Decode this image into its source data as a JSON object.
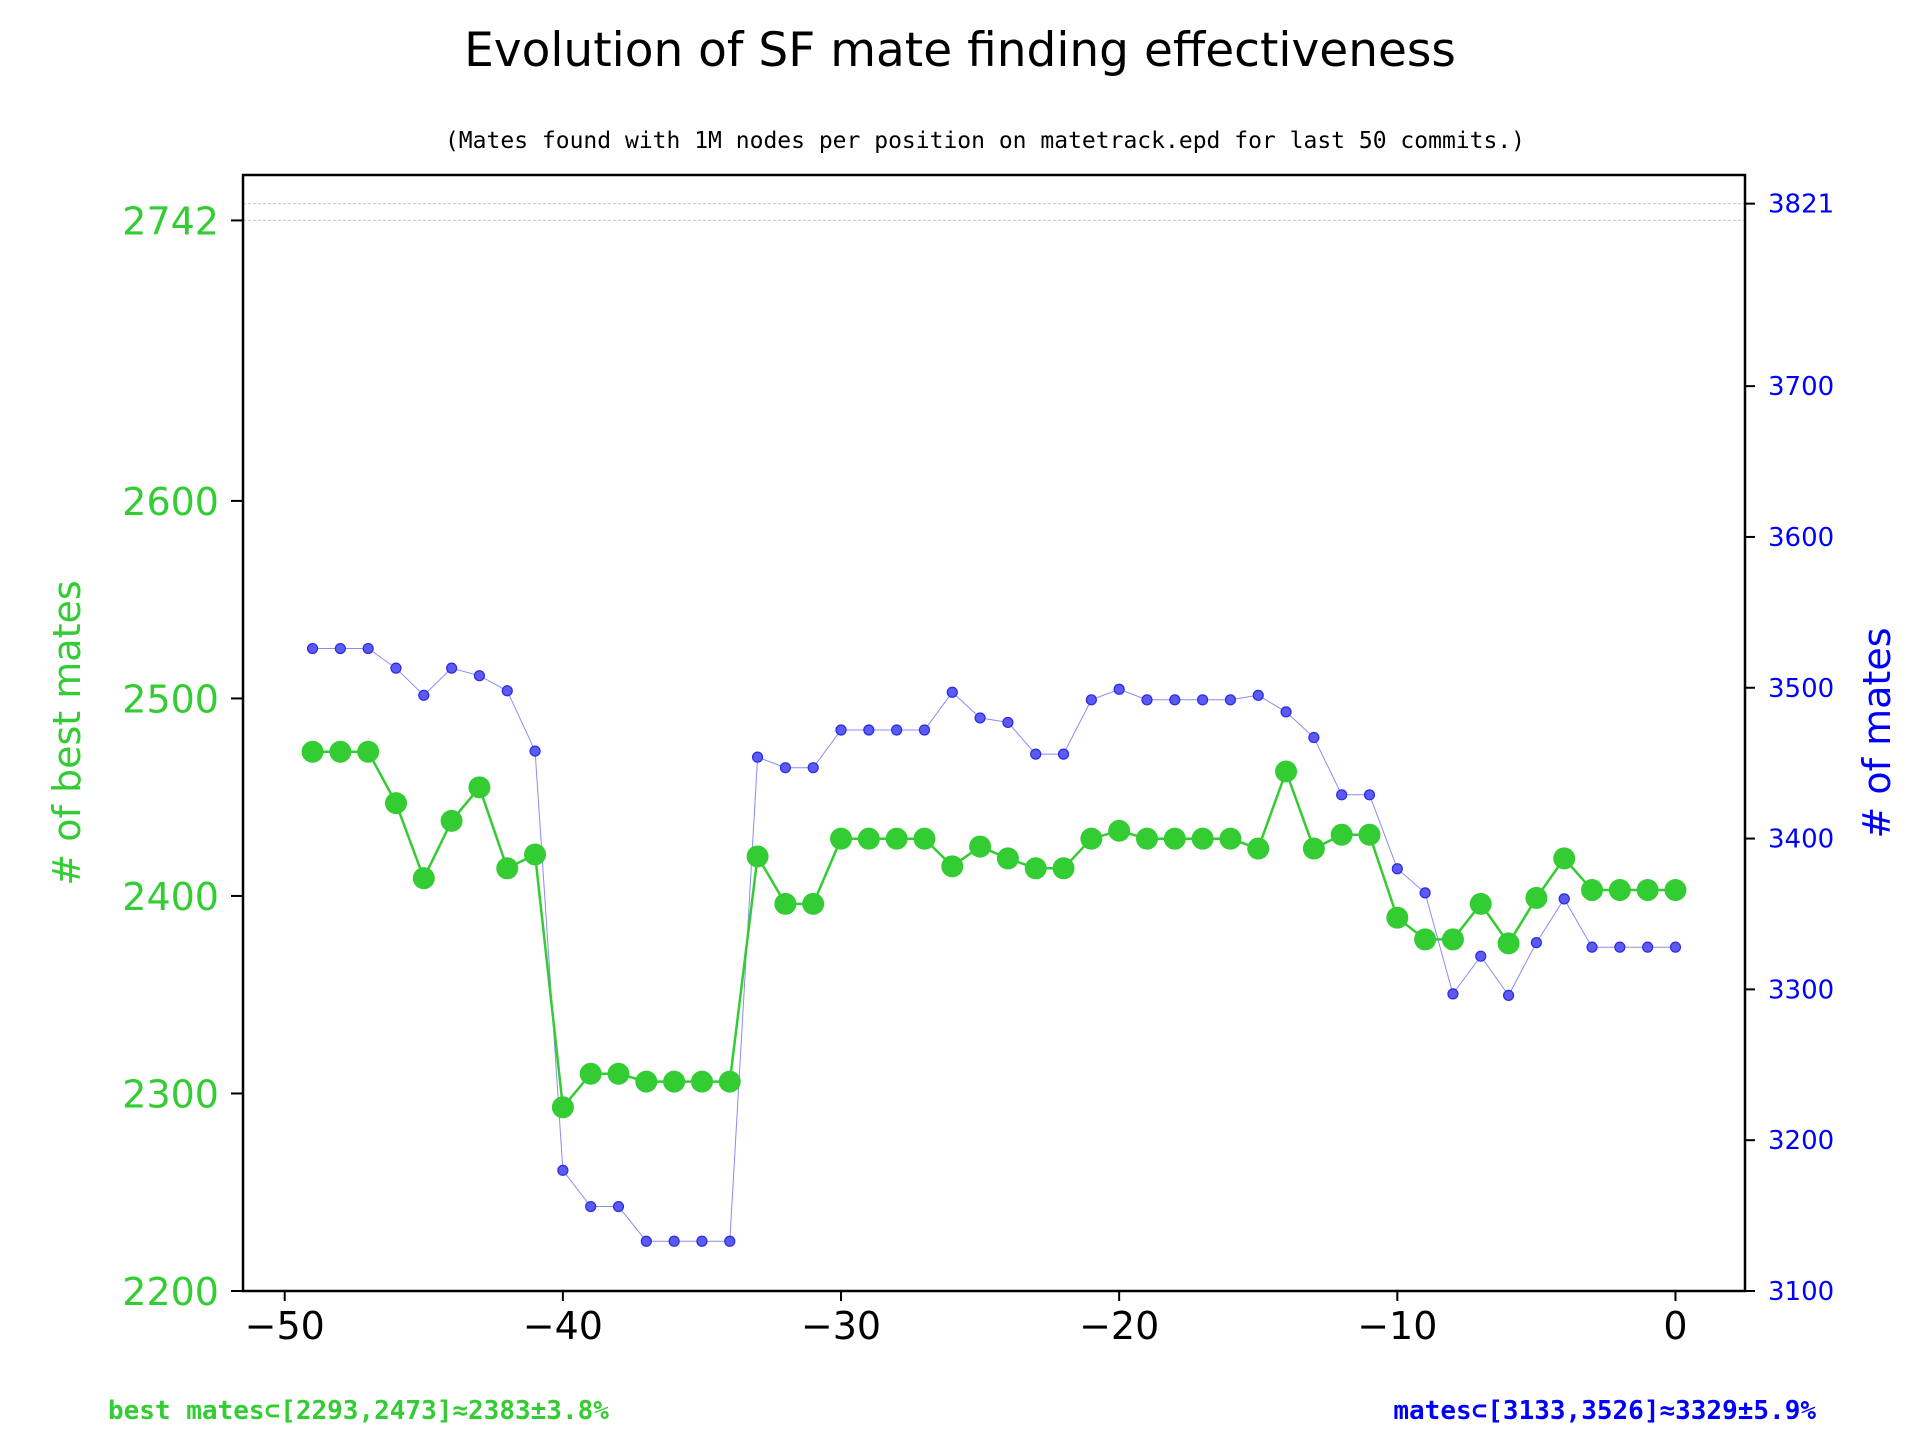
{
  "chart_data": {
    "type": "line",
    "title": "Evolution of SF mate finding effectiveness",
    "subtitle": "(Mates found with 1M nodes per position on matetrack.epd for last 50 commits.)",
    "xlabel": "",
    "ylabel_left": "# of best mates",
    "ylabel_right": "# of mates",
    "x": [
      -49,
      -48,
      -47,
      -46,
      -45,
      -44,
      -43,
      -42,
      -41,
      -40,
      -39,
      -38,
      -37,
      -36,
      -35,
      -34,
      -33,
      -32,
      -31,
      -30,
      -29,
      -28,
      -27,
      -26,
      -25,
      -24,
      -23,
      -22,
      -21,
      -20,
      -19,
      -18,
      -17,
      -16,
      -15,
      -14,
      -13,
      -12,
      -11,
      -10,
      -9,
      -8,
      -7,
      -6,
      -5,
      -4,
      -3,
      -2,
      -1,
      0
    ],
    "xlim": [
      -51.5,
      2.5
    ],
    "x_ticks": [
      -50,
      -40,
      -30,
      -20,
      -10,
      0
    ],
    "x_tick_labels": [
      "−50",
      "−40",
      "−30",
      "−20",
      "−10",
      "0"
    ],
    "left_axis": {
      "ylim": [
        2200,
        2765
      ],
      "ticks": [
        2200,
        2300,
        2400,
        2500,
        2600,
        2742
      ],
      "tick_labels": [
        "2200",
        "2300",
        "2400",
        "2500",
        "2600",
        "2742"
      ],
      "color": "#33cc33"
    },
    "right_axis": {
      "ylim": [
        3100,
        3840
      ],
      "ticks": [
        3100,
        3200,
        3300,
        3400,
        3500,
        3600,
        3700,
        3821
      ],
      "tick_labels": [
        "3100",
        "3200",
        "3300",
        "3400",
        "3500",
        "3600",
        "3700",
        "3821"
      ],
      "color": "#0000ff"
    },
    "series": [
      {
        "name": "best mates",
        "axis": "left",
        "color": "#33cc33",
        "values": [
          2473,
          2473,
          2473,
          2447,
          2409,
          2438,
          2455,
          2414,
          2421,
          2293,
          2310,
          2310,
          2306,
          2306,
          2306,
          2306,
          2420,
          2396,
          2396,
          2429,
          2429,
          2429,
          2429,
          2415,
          2425,
          2419,
          2414,
          2414,
          2429,
          2433,
          2429,
          2429,
          2429,
          2429,
          2424,
          2463,
          2424,
          2431,
          2431,
          2389,
          2378,
          2378,
          2396,
          2376,
          2399,
          2419,
          2403,
          2403,
          2403,
          2403
        ]
      },
      {
        "name": "mates",
        "axis": "right",
        "color": "#0000ff",
        "values": [
          3526,
          3526,
          3526,
          3513,
          3495,
          3513,
          3508,
          3498,
          3458,
          3180,
          3156,
          3156,
          3133,
          3133,
          3133,
          3133,
          3454,
          3447,
          3447,
          3472,
          3472,
          3472,
          3472,
          3497,
          3480,
          3477,
          3456,
          3456,
          3492,
          3499,
          3492,
          3492,
          3492,
          3492,
          3495,
          3484,
          3467,
          3429,
          3429,
          3380,
          3364,
          3297,
          3322,
          3296,
          3331,
          3360,
          3328,
          3328,
          3328,
          3328
        ]
      }
    ],
    "reference_lines_left": [
      2742
    ],
    "reference_lines_right": [
      3821
    ],
    "footer_left": "best mates⊂[2293,2473]≈2383±3.8%",
    "footer_right": "mates⊂[3133,3526]≈3329±5.9%"
  }
}
